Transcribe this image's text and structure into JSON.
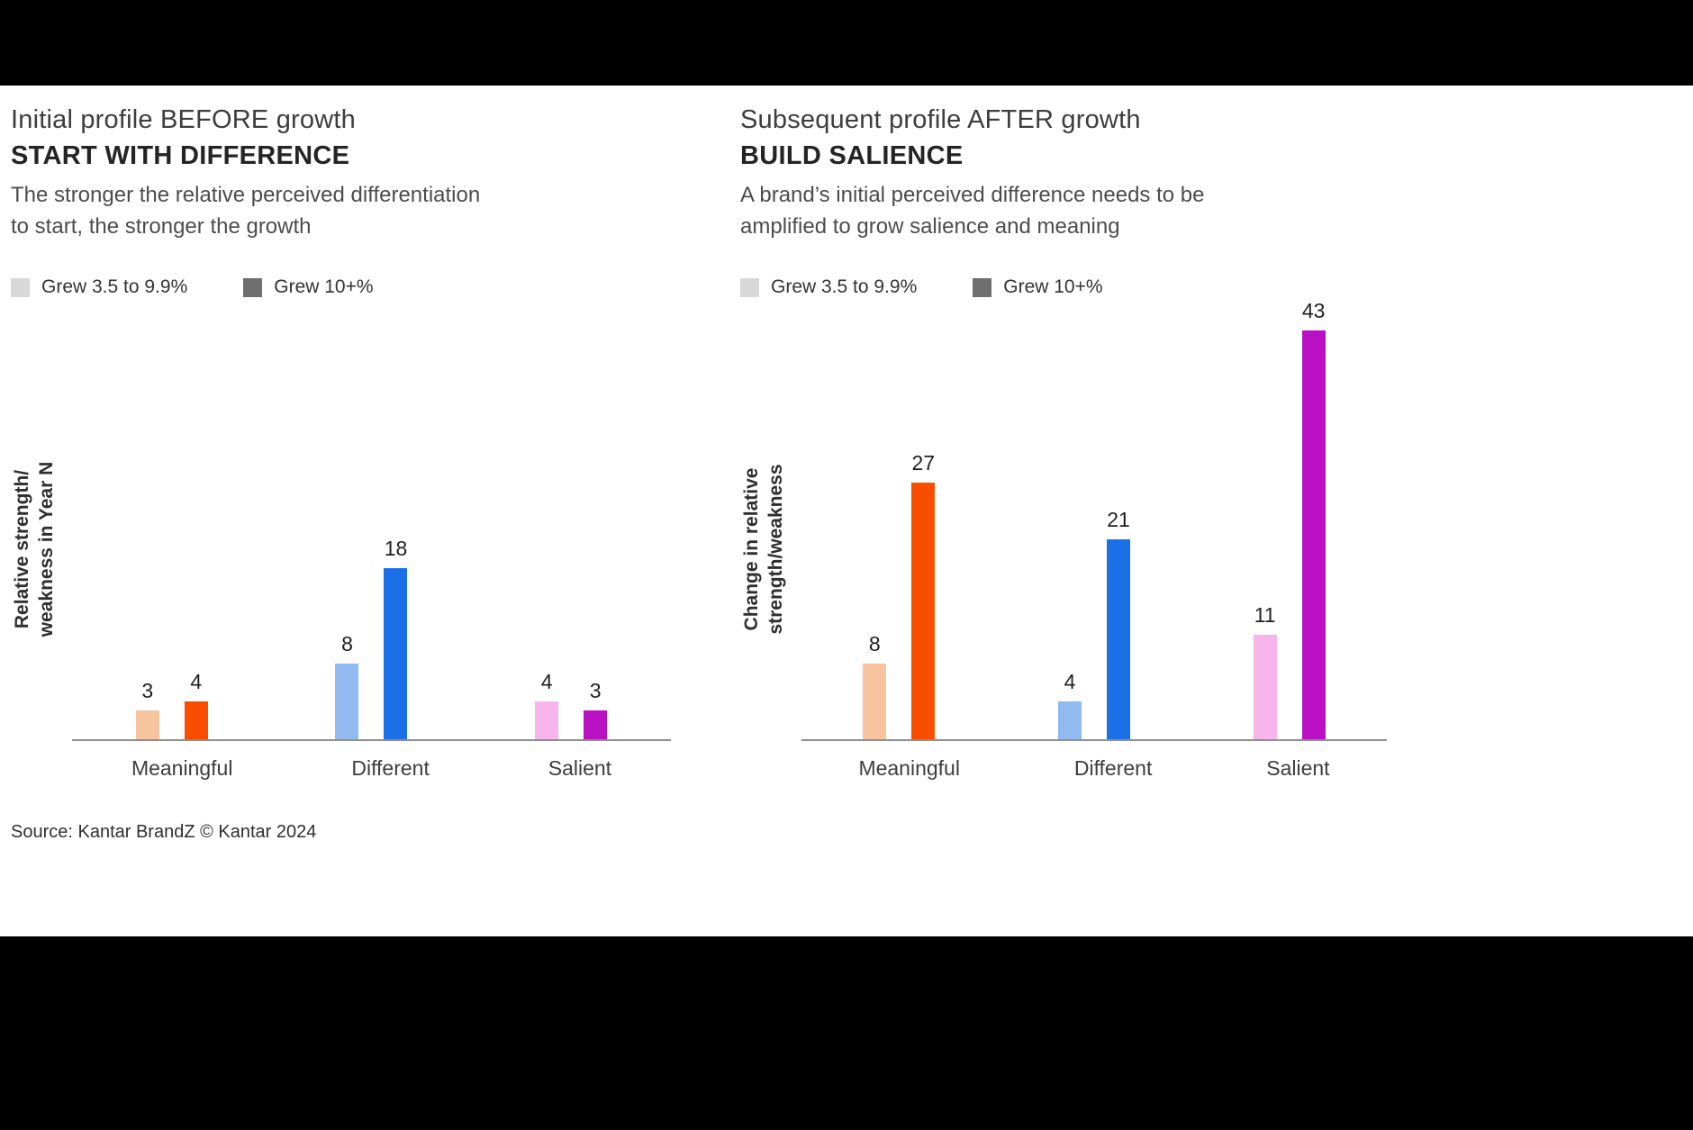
{
  "chart_data": [
    {
      "type": "bar",
      "title": "Initial profile BEFORE growth",
      "title_bold": "START WITH DIFFERENCE",
      "subtitle": "The stronger the relative perceived differentiation\nto start, the stronger the growth",
      "ylabel": "Relative strength/\nweakness in Year N",
      "categories": [
        "Meaningful",
        "Different",
        "Salient"
      ],
      "series": [
        {
          "name": "Grew 3.5 to 9.9%",
          "values": [
            3,
            8,
            4
          ]
        },
        {
          "name": "Grew 10+%",
          "values": [
            4,
            18,
            3
          ]
        }
      ],
      "category_colors": [
        {
          "light": "#f8c49f",
          "dark": "#f94e00"
        },
        {
          "light": "#90baf0",
          "dark": "#1b70e8"
        },
        {
          "light": "#f7b5eb",
          "dark": "#ba10c4"
        }
      ],
      "legend": [
        {
          "label": "Grew 3.5 to 9.9%",
          "swatch": "#d8d8d8"
        },
        {
          "label": "Grew 10+%",
          "swatch": "#6e6e6e"
        }
      ],
      "ylim": [
        0,
        20
      ],
      "grid": false,
      "legend_position": "top"
    },
    {
      "type": "bar",
      "title": "Subsequent profile AFTER growth",
      "title_bold": "BUILD SALIENCE",
      "subtitle": "A brand’s initial perceived difference needs to be\namplified to grow salience and meaning",
      "ylabel": "Change in relative\nstrength/weakness",
      "categories": [
        "Meaningful",
        "Different",
        "Salient"
      ],
      "series": [
        {
          "name": "Grew 3.5 to 9.9%",
          "values": [
            8,
            4,
            11
          ]
        },
        {
          "name": "Grew 10+%",
          "values": [
            27,
            21,
            43
          ]
        }
      ],
      "category_colors": [
        {
          "light": "#f8c49f",
          "dark": "#f94e00"
        },
        {
          "light": "#90baf0",
          "dark": "#1b70e8"
        },
        {
          "light": "#f7b5eb",
          "dark": "#ba10c4"
        }
      ],
      "legend": [
        {
          "label": "Grew 3.5 to 9.9%",
          "swatch": "#d8d8d8"
        },
        {
          "label": "Grew 10+%",
          "swatch": "#6e6e6e"
        }
      ],
      "ylim": [
        0,
        45
      ],
      "grid": false,
      "legend_position": "top"
    }
  ],
  "footer": {
    "source": "Source: Kantar BrandZ © Kantar 2024"
  }
}
